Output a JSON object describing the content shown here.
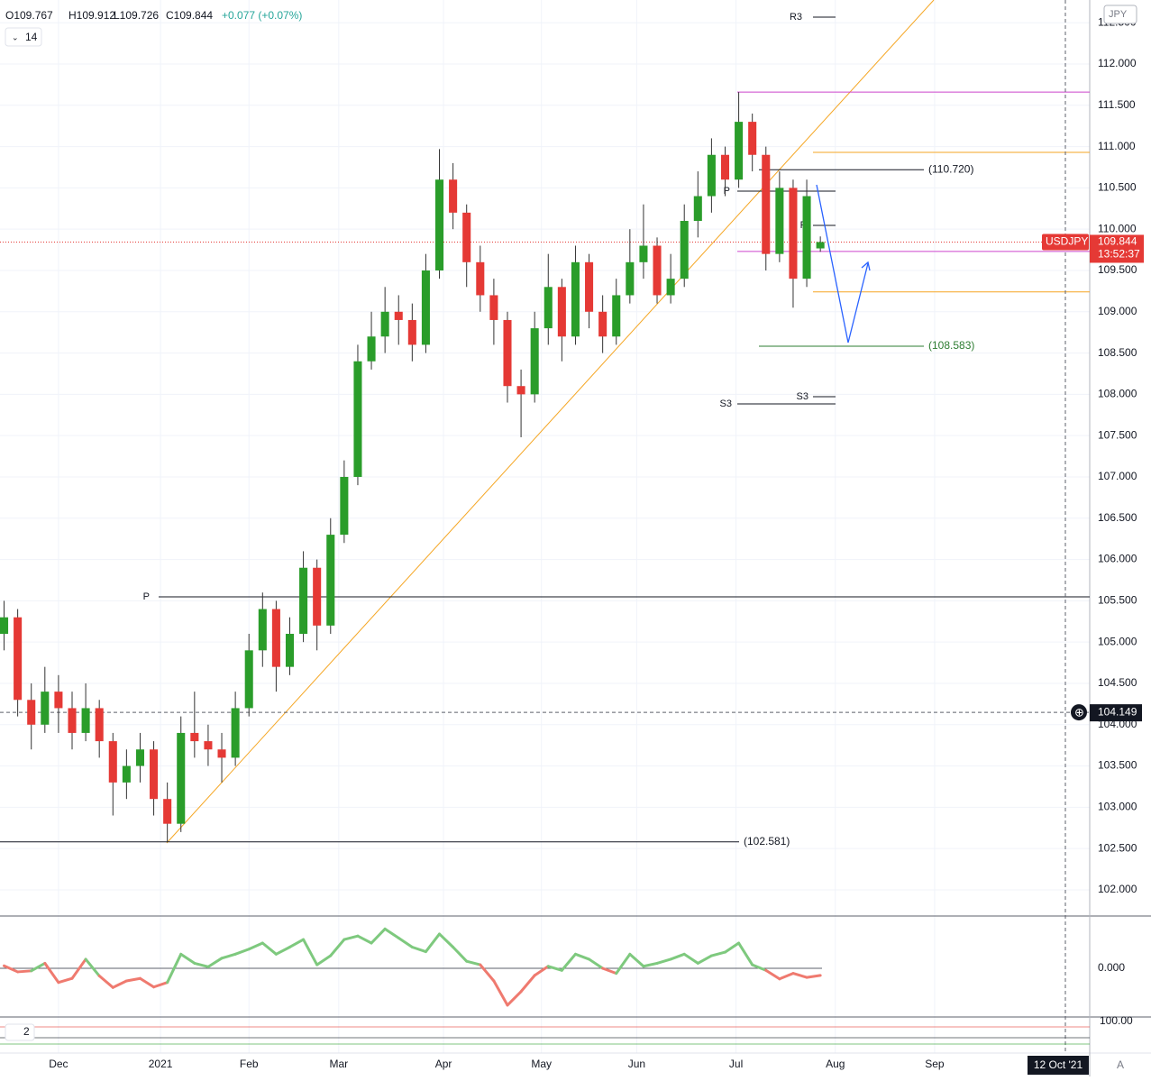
{
  "chart_data": {
    "type": "candlestick",
    "header": {
      "o": "O109.767",
      "h": "H109.912",
      "l": "L109.726",
      "c": "C109.844",
      "change": "+0.077 (+0.07%)"
    },
    "period": "14",
    "currency": "JPY",
    "symbol": "USDJPY",
    "last_price": {
      "value": 109.844,
      "label": "109.844"
    },
    "countdown": "13:52:37",
    "crosshair": {
      "value": 104.149,
      "label": "104.149"
    },
    "crosshair_date": "12 Oct '21",
    "auto_label": "A",
    "indicator_count": "2",
    "lower_pane_label": "100.00",
    "up_color": "#2a9d2a",
    "down_color": "#e53935",
    "open": [
      105.1,
      105.3,
      104.3,
      104.0,
      104.4,
      104.2,
      103.9,
      104.2,
      103.8,
      103.3,
      103.5,
      103.7,
      103.1,
      102.8,
      103.9,
      103.8,
      103.7,
      103.6,
      104.2,
      104.9,
      105.4,
      104.7,
      105.1,
      105.9,
      105.2,
      106.3,
      107.0,
      108.4,
      108.7,
      109.0,
      108.9,
      108.6,
      109.5,
      110.6,
      110.2,
      109.6,
      109.2,
      108.9,
      108.1,
      108.0,
      108.8,
      109.3,
      108.7,
      109.6,
      109.0,
      108.7,
      109.2,
      109.6,
      109.8,
      109.2,
      109.4,
      110.1,
      110.4,
      110.9,
      110.6,
      111.3,
      110.9,
      109.7,
      110.5,
      109.4,
      109.767
    ],
    "high": [
      105.5,
      105.4,
      104.5,
      104.7,
      104.6,
      104.4,
      104.5,
      104.3,
      103.9,
      103.7,
      103.9,
      103.8,
      103.3,
      104.1,
      104.4,
      104.0,
      103.9,
      104.4,
      105.1,
      105.6,
      105.5,
      105.3,
      106.1,
      106.0,
      106.5,
      107.2,
      108.6,
      109.0,
      109.3,
      109.2,
      109.1,
      109.7,
      110.97,
      110.8,
      110.3,
      109.8,
      109.4,
      109.0,
      108.3,
      109.0,
      109.7,
      109.4,
      109.8,
      109.7,
      109.2,
      109.4,
      110.0,
      110.3,
      109.9,
      109.7,
      110.3,
      110.7,
      111.1,
      111.0,
      111.66,
      111.4,
      111.0,
      110.7,
      110.6,
      110.6,
      109.912
    ],
    "low": [
      104.9,
      104.1,
      103.7,
      103.9,
      103.9,
      103.7,
      103.8,
      103.6,
      102.9,
      103.1,
      103.3,
      102.9,
      102.581,
      102.7,
      103.6,
      103.5,
      103.3,
      103.5,
      104.1,
      104.7,
      104.4,
      104.6,
      105.0,
      104.9,
      105.1,
      106.2,
      106.9,
      108.3,
      108.5,
      108.6,
      108.4,
      108.5,
      109.4,
      110.0,
      109.3,
      109.0,
      108.6,
      107.9,
      107.48,
      107.9,
      108.6,
      108.4,
      108.6,
      108.8,
      108.5,
      108.6,
      109.1,
      109.4,
      109.1,
      109.1,
      109.3,
      109.9,
      110.2,
      110.4,
      110.5,
      110.7,
      109.5,
      109.6,
      109.05,
      109.3,
      109.726
    ],
    "close": [
      105.3,
      104.3,
      104.0,
      104.4,
      104.2,
      103.9,
      104.2,
      103.8,
      103.3,
      103.5,
      103.7,
      103.1,
      102.8,
      103.9,
      103.8,
      103.7,
      103.6,
      104.2,
      104.9,
      105.4,
      104.7,
      105.1,
      105.9,
      105.2,
      106.3,
      107.0,
      108.4,
      108.7,
      109.0,
      108.9,
      108.6,
      109.5,
      110.6,
      110.2,
      109.6,
      109.2,
      108.9,
      108.1,
      108.0,
      108.8,
      109.3,
      108.7,
      109.6,
      109.0,
      108.7,
      109.2,
      109.6,
      109.8,
      109.2,
      109.4,
      110.1,
      110.4,
      110.9,
      110.6,
      111.3,
      110.9,
      109.7,
      110.5,
      109.4,
      110.4,
      109.844
    ],
    "xlim": [
      -0.3,
      79.8
    ],
    "xticks": [
      {
        "value": 4,
        "label": "Dec"
      },
      {
        "value": 11.5,
        "label": "2021"
      },
      {
        "value": 18,
        "label": "Feb"
      },
      {
        "value": 24.6,
        "label": "Mar"
      },
      {
        "value": 32.3,
        "label": "Apr"
      },
      {
        "value": 39.5,
        "label": "May"
      },
      {
        "value": 46.5,
        "label": "Jun"
      },
      {
        "value": 53.8,
        "label": "Jul"
      },
      {
        "value": 61.1,
        "label": "Aug"
      },
      {
        "value": 68.4,
        "label": "Sep"
      }
    ],
    "ylim": [
      101.683,
      112.775
    ],
    "yticks": [
      {
        "value": 102,
        "label": "102.000"
      },
      {
        "value": 102.5,
        "label": "102.500"
      },
      {
        "value": 103,
        "label": "103.000"
      },
      {
        "value": 103.5,
        "label": "103.500"
      },
      {
        "value": 104,
        "label": "104.000"
      },
      {
        "value": 104.5,
        "label": "104.500"
      },
      {
        "value": 105,
        "label": "105.000"
      },
      {
        "value": 105.5,
        "label": "105.500"
      },
      {
        "value": 106,
        "label": "106.000"
      },
      {
        "value": 106.5,
        "label": "106.500"
      },
      {
        "value": 107,
        "label": "107.000"
      },
      {
        "value": 107.5,
        "label": "107.500"
      },
      {
        "value": 108,
        "label": "108.000"
      },
      {
        "value": 108.5,
        "label": "108.500"
      },
      {
        "value": 109,
        "label": "109.000"
      },
      {
        "value": 109.5,
        "label": "109.500"
      },
      {
        "value": 110,
        "label": "110.000"
      },
      {
        "value": 110.5,
        "label": "110.500"
      },
      {
        "value": 111,
        "label": "111.000"
      },
      {
        "value": 111.5,
        "label": "111.500"
      },
      {
        "value": 112,
        "label": "112.000"
      },
      {
        "value": 112.5,
        "label": "112.500"
      }
    ],
    "grid": true,
    "pivots": [
      {
        "label": "R3",
        "value": 112.568
      },
      {
        "label": "P",
        "value": 105.548
      },
      {
        "label": "P",
        "value": 110.461
      },
      {
        "label": "P",
        "value": 110.046
      },
      {
        "label": "S3",
        "value": 107.972
      },
      {
        "label": "S3",
        "value": 107.884
      }
    ],
    "levels": [
      {
        "value": 110.72,
        "label": "(110.720)",
        "color": "#131722"
      },
      {
        "value": 108.583,
        "label": "(108.583)",
        "color": "#2e7d32"
      },
      {
        "value": 102.581,
        "label": "(102.581)",
        "color": "#131722"
      }
    ],
    "lines": [
      {
        "value": 111.66,
        "color": "#cc44cc"
      },
      {
        "value": 109.73,
        "color": "#cc44cc"
      },
      {
        "value": 110.93,
        "color": "#f5a623"
      },
      {
        "value": 109.24,
        "color": "#f5a623"
      }
    ],
    "oscillator": {
      "values": [
        0.05,
        -0.07,
        -0.05,
        0.1,
        -0.28,
        -0.2,
        0.18,
        -0.15,
        -0.38,
        -0.25,
        -0.2,
        -0.37,
        -0.28,
        0.28,
        0.1,
        0.03,
        0.2,
        0.28,
        0.38,
        0.5,
        0.28,
        0.42,
        0.57,
        0.07,
        0.25,
        0.57,
        0.64,
        0.5,
        0.78,
        0.6,
        0.42,
        0.33,
        0.68,
        0.42,
        0.14,
        0.07,
        -0.25,
        -0.73,
        -0.46,
        -0.14,
        0.04,
        -0.04,
        0.28,
        0.18,
        0.0,
        -0.1,
        0.28,
        0.04,
        0.1,
        0.18,
        0.28,
        0.1,
        0.25,
        0.32,
        0.5,
        0.07,
        -0.04,
        -0.21,
        -0.1,
        -0.18,
        -0.14
      ],
      "ylim": [
        -0.964,
        1.036
      ],
      "yticks": [
        {
          "value": 0,
          "label": "0.000"
        }
      ],
      "up_color": "#7ec97e",
      "down_color": "#ef7a6f"
    }
  }
}
